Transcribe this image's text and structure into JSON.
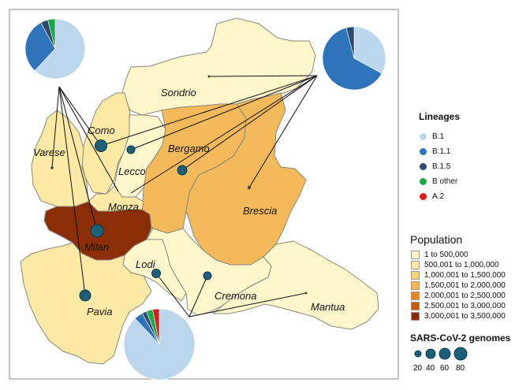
{
  "provinces": [
    {
      "name": "Sondrio",
      "fill": "#fff7cc"
    },
    {
      "name": "Como",
      "fill": "#fde9a6"
    },
    {
      "name": "Varese",
      "fill": "#fde9a6"
    },
    {
      "name": "Lecco",
      "fill": "#fff7cc"
    },
    {
      "name": "Bergamo",
      "fill": "#f3b95a"
    },
    {
      "name": "Brescia",
      "fill": "#f3b95a"
    },
    {
      "name": "Monza",
      "fill": "#fde9a6"
    },
    {
      "name": "Milan",
      "fill": "#8b2e08"
    },
    {
      "name": "Lodi",
      "fill": "#fff7cc"
    },
    {
      "name": "Cremona",
      "fill": "#fff7cc"
    },
    {
      "name": "Mantua",
      "fill": "#fff7cc"
    },
    {
      "name": "Pavia",
      "fill": "#fde9a6"
    }
  ],
  "lineages_legend": {
    "title": "Lineages",
    "items": [
      {
        "label": "B.1",
        "color": "#bcd6ee"
      },
      {
        "label": "B.1.1",
        "color": "#2f74bb"
      },
      {
        "label": "B.1.5",
        "color": "#2e4a6a"
      },
      {
        "label": "B other",
        "color": "#1fa84b"
      },
      {
        "label": "A.2",
        "color": "#e31a1c"
      }
    ]
  },
  "population_legend": {
    "title": "Population",
    "items": [
      {
        "label": "1 to 500,000",
        "color": "#fff7cc"
      },
      {
        "label": "500,001 to 1,000,000",
        "color": "#fde9a6"
      },
      {
        "label": "1,000,001 to 1,500,000",
        "color": "#fbd27a"
      },
      {
        "label": "1,500,001 to 2,000,000",
        "color": "#f3b95a"
      },
      {
        "label": "2,000,001 to 2,500,000",
        "color": "#e88a24"
      },
      {
        "label": "2,500,001 to 3,000,000",
        "color": "#c6580f"
      },
      {
        "label": "3,000,001 to 3,500,000",
        "color": "#8b2e08"
      }
    ]
  },
  "genomes_legend": {
    "title": "SARS-CoV-2 genomes",
    "sizes": [
      "20",
      "40",
      "60",
      "80"
    ]
  },
  "pies": [
    {
      "id": "west",
      "slices": [
        {
          "lineage": "B.1",
          "fraction": 0.62
        },
        {
          "lineage": "B.1.1",
          "fraction": 0.3
        },
        {
          "lineage": "B.1.5",
          "fraction": 0.04
        },
        {
          "lineage": "B other",
          "fraction": 0.04
        }
      ]
    },
    {
      "id": "east",
      "slices": [
        {
          "lineage": "B.1",
          "fraction": 0.33
        },
        {
          "lineage": "B.1.1",
          "fraction": 0.63
        },
        {
          "lineage": "B.1.5",
          "fraction": 0.04
        }
      ]
    },
    {
      "id": "south",
      "slices": [
        {
          "lineage": "B.1",
          "fraction": 0.88
        },
        {
          "lineage": "B.1.1",
          "fraction": 0.04
        },
        {
          "lineage": "B.1.5",
          "fraction": 0.02
        },
        {
          "lineage": "B other",
          "fraction": 0.03
        },
        {
          "lineage": "A.2",
          "fraction": 0.03
        }
      ]
    }
  ],
  "colors": {
    "marker": "#1b5f78",
    "border": "#888888"
  }
}
